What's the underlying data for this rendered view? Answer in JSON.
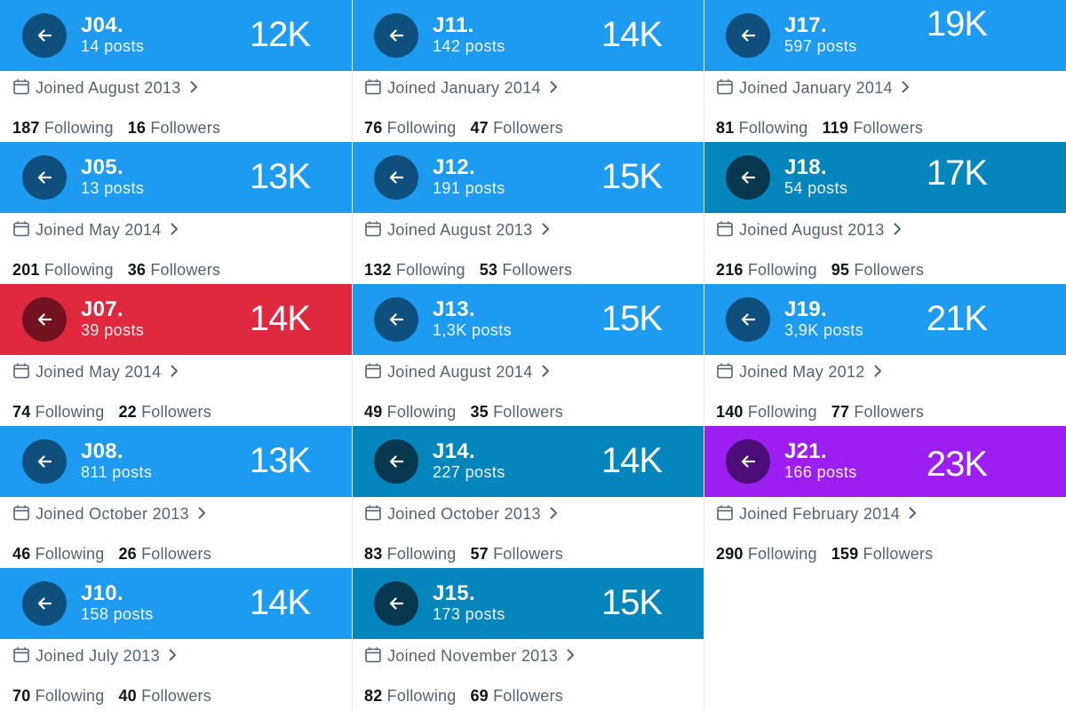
{
  "columns": [
    {
      "profiles": [
        {
          "name": "J04.",
          "posts": "14 posts",
          "count": "12K",
          "joined": "Joined August 2013",
          "following": "187",
          "following_label": "Following",
          "followers": "16",
          "followers_label": "Followers",
          "banner_color": "#1d9bf0",
          "button_color": "#0f4f7d"
        },
        {
          "name": "J05.",
          "posts": "13 posts",
          "count": "13K",
          "joined": "Joined May 2014",
          "following": "201",
          "following_label": "Following",
          "followers": "36",
          "followers_label": "Followers",
          "banner_color": "#1d9bf0",
          "button_color": "#0f4f7d"
        },
        {
          "name": "J07.",
          "posts": "39 posts",
          "count": "14K",
          "joined": "Joined May 2014",
          "following": "74",
          "following_label": "Following",
          "followers": "22",
          "followers_label": "Followers",
          "banner_color": "#e0283f",
          "button_color": "#731322"
        },
        {
          "name": "J08.",
          "posts": "811 posts",
          "count": "13K",
          "joined": "Joined October 2013",
          "following": "46",
          "following_label": "Following",
          "followers": "26",
          "followers_label": "Followers",
          "banner_color": "#1d9bf0",
          "button_color": "#0f4f7d"
        },
        {
          "name": "J10.",
          "posts": "158 posts",
          "count": "14K",
          "joined": "Joined July 2013",
          "following": "70",
          "following_label": "Following",
          "followers": "40",
          "followers_label": "Followers",
          "banner_color": "#1d9bf0",
          "button_color": "#0f4f7d"
        }
      ]
    },
    {
      "profiles": [
        {
          "name": "J11.",
          "posts": "142 posts",
          "count": "14K",
          "joined": "Joined January 2014",
          "following": "76",
          "following_label": "Following",
          "followers": "47",
          "followers_label": "Followers",
          "banner_color": "#1d9bf0",
          "button_color": "#0f4f7d"
        },
        {
          "name": "J12.",
          "posts": "191 posts",
          "count": "15K",
          "joined": "Joined August 2013",
          "following": "132",
          "following_label": "Following",
          "followers": "53",
          "followers_label": "Followers",
          "banner_color": "#1d9bf0",
          "button_color": "#0f4f7d"
        },
        {
          "name": "J13.",
          "posts": "1,3K posts",
          "count": "15K",
          "joined": "Joined August 2014",
          "following": "49",
          "following_label": "Following",
          "followers": "35",
          "followers_label": "Followers",
          "banner_color": "#1d9bf0",
          "button_color": "#0f4f7d"
        },
        {
          "name": "J14.",
          "posts": "227 posts",
          "count": "14K",
          "joined": "Joined October 2013",
          "following": "83",
          "following_label": "Following",
          "followers": "57",
          "followers_label": "Followers",
          "banner_color": "#0485bc",
          "button_color": "#08384f"
        },
        {
          "name": "J15.",
          "posts": "173 posts",
          "count": "15K",
          "joined": "Joined November 2013",
          "following": "82",
          "following_label": "Following",
          "followers": "69",
          "followers_label": "Followers",
          "banner_color": "#0485bc",
          "button_color": "#08384f"
        }
      ]
    },
    {
      "profiles": [
        {
          "name": "J17.",
          "posts": "597 posts",
          "count": "19K",
          "joined": "Joined January 2014",
          "following": "81",
          "following_label": "Following",
          "followers": "119",
          "followers_label": "Followers",
          "banner_color": "#1d9bf0",
          "button_color": "#0f4f7d"
        },
        {
          "name": "J18.",
          "posts": "54 posts",
          "count": "17K",
          "joined": "Joined August 2013",
          "following": "216",
          "following_label": "Following",
          "followers": "95",
          "followers_label": "Followers",
          "banner_color": "#0485bc",
          "button_color": "#08384f"
        },
        {
          "name": "J19.",
          "posts": "3,9K posts",
          "count": "21K",
          "joined": "Joined May 2012",
          "following": "140",
          "following_label": "Following",
          "followers": "77",
          "followers_label": "Followers",
          "banner_color": "#1d9bf0",
          "button_color": "#0f4f7d"
        },
        {
          "name": "J21.",
          "posts": "166 posts",
          "count": "23K",
          "joined": "Joined February 2014",
          "following": "290",
          "following_label": "Following",
          "followers": "159",
          "followers_label": "Followers",
          "banner_color": "#9d1ef0",
          "button_color": "#4c0d78"
        }
      ]
    }
  ],
  "icons": {
    "back": "arrow-left-icon",
    "calendar": "calendar-icon",
    "chevron": "chevron-right-icon"
  }
}
